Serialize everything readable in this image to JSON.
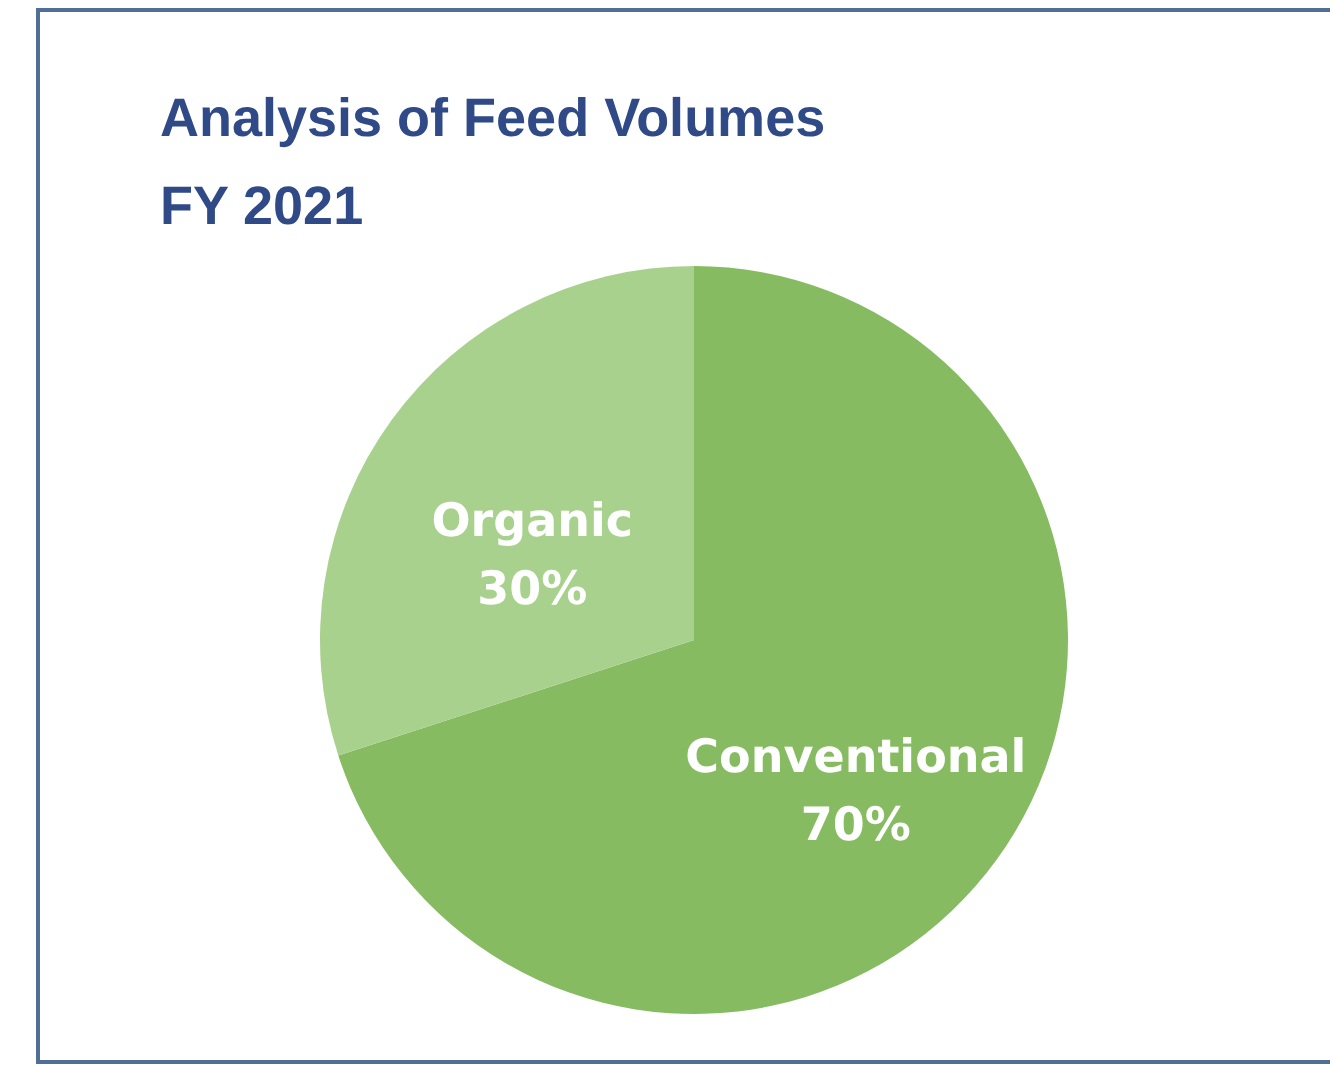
{
  "chart_data": {
    "type": "pie",
    "title": "Analysis of Feed Volumes\nFY 2021",
    "categories": [
      "Conventional",
      "Organic"
    ],
    "values": [
      70,
      30
    ],
    "value_labels": [
      "70%",
      "30%"
    ],
    "colors": [
      "#86bb61",
      "#a9d18e"
    ],
    "legend": false
  }
}
